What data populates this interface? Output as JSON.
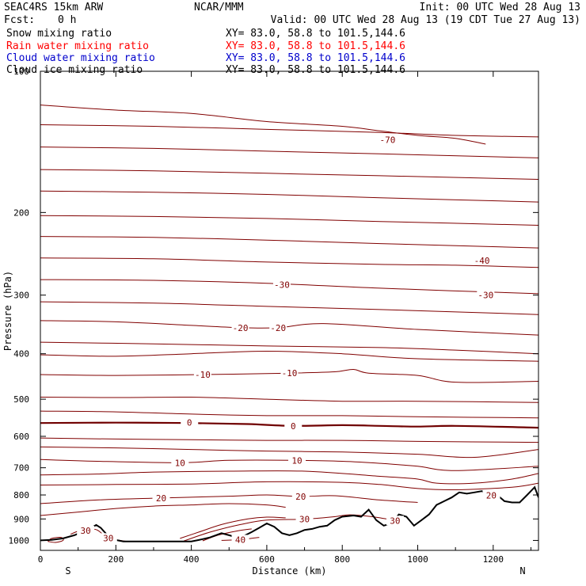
{
  "header": {
    "model": "SEAC4RS 15km ARW",
    "center": "NCAR/MMM",
    "init": "Init: 00 UTC Wed 28 Aug 13",
    "fcst_label": "Fcst:",
    "fcst_value": "0 h",
    "valid": "Valid: 00 UTC Wed 28 Aug 13 (19 CDT Tue 27 Aug 13)"
  },
  "fields": [
    {
      "name": "Snow mixing ratio",
      "xy": "XY=  83.0, 58.8 to 101.5,144.6",
      "color": "#000000"
    },
    {
      "name": "Rain water mixing ratio",
      "xy": "XY=  83.0, 58.8 to 101.5,144.6",
      "color": "#ff0000"
    },
    {
      "name": "Cloud water mixing ratio",
      "xy": "XY=  83.0, 58.8 to 101.5,144.6",
      "color": "#0000cc"
    },
    {
      "name": "Cloud ice mixing ratio",
      "xy": "XY=  83.0, 58.8 to 101.5,144.6",
      "color": "#000000"
    }
  ],
  "chart_data": {
    "type": "line",
    "xlabel": "Distance (km)",
    "ylabel": "Pressure (hPa)",
    "xlim": [
      0,
      1320
    ],
    "ylim": [
      1050,
      100
    ],
    "y_scale": "log",
    "x_ticks": [
      "0",
      "200",
      "400",
      "600",
      "800",
      "1000",
      "1200"
    ],
    "y_ticks": [
      "100",
      "200",
      "300",
      "400",
      "500",
      "600",
      "700",
      "800",
      "900",
      "1000"
    ],
    "endpoint_labels": {
      "left": "S",
      "right": "N"
    },
    "contour_color": "#800000",
    "zero_line_color": "#700000",
    "terrain_color": "#000000",
    "contour_labels": [
      {
        "text": "-70",
        "x": 920,
        "y": 140
      },
      {
        "text": "-40",
        "x": 1170,
        "y": 253
      },
      {
        "text": "-30",
        "x": 640,
        "y": 285
      },
      {
        "text": "-30",
        "x": 1180,
        "y": 300
      },
      {
        "text": "-20",
        "x": 530,
        "y": 352
      },
      {
        "text": "-20",
        "x": 630,
        "y": 352
      },
      {
        "text": "-10",
        "x": 430,
        "y": 443
      },
      {
        "text": "-10",
        "x": 660,
        "y": 440
      },
      {
        "text": "0",
        "x": 395,
        "y": 560
      },
      {
        "text": "0",
        "x": 670,
        "y": 570
      },
      {
        "text": "10",
        "x": 370,
        "y": 683
      },
      {
        "text": "10",
        "x": 680,
        "y": 675
      },
      {
        "text": "20",
        "x": 320,
        "y": 812
      },
      {
        "text": "20",
        "x": 690,
        "y": 806
      },
      {
        "text": "20",
        "x": 1195,
        "y": 802
      },
      {
        "text": "30",
        "x": 700,
        "y": 901
      },
      {
        "text": "30",
        "x": 940,
        "y": 907
      },
      {
        "text": "30",
        "x": 120,
        "y": 953
      },
      {
        "text": "30",
        "x": 180,
        "y": 988
      },
      {
        "text": "40",
        "x": 530,
        "y": 996
      }
    ],
    "contours": [
      {
        "value": -70,
        "points": [
          [
            0,
            118
          ],
          [
            200,
            121
          ],
          [
            400,
            123
          ],
          [
            600,
            128
          ],
          [
            800,
            131
          ],
          [
            900,
            134
          ],
          [
            1000,
            137
          ],
          [
            1100,
            139
          ],
          [
            1180,
            143
          ]
        ]
      },
      {
        "value": -70,
        "points": [
          [
            0,
            130
          ],
          [
            300,
            131
          ],
          [
            600,
            133
          ],
          [
            900,
            135
          ],
          [
            1100,
            137
          ],
          [
            1320,
            138
          ]
        ]
      },
      {
        "value": -70,
        "points": [
          [
            0,
            145
          ],
          [
            300,
            146
          ],
          [
            600,
            148
          ],
          [
            900,
            150
          ],
          [
            1320,
            153
          ]
        ]
      },
      {
        "value": -60,
        "points": [
          [
            0,
            162
          ],
          [
            300,
            163
          ],
          [
            600,
            165
          ],
          [
            900,
            167
          ],
          [
            1320,
            170
          ]
        ]
      },
      {
        "value": -60,
        "points": [
          [
            0,
            180
          ],
          [
            300,
            181
          ],
          [
            600,
            183
          ],
          [
            900,
            186
          ],
          [
            1320,
            190
          ]
        ]
      },
      {
        "value": -50,
        "points": [
          [
            0,
            203
          ],
          [
            300,
            204
          ],
          [
            600,
            206
          ],
          [
            900,
            209
          ],
          [
            1320,
            213
          ]
        ]
      },
      {
        "value": -50,
        "points": [
          [
            0,
            225
          ],
          [
            300,
            226
          ],
          [
            600,
            229
          ],
          [
            900,
            233
          ],
          [
            1320,
            238
          ]
        ]
      },
      {
        "value": -40,
        "points": [
          [
            0,
            250
          ],
          [
            300,
            251
          ],
          [
            600,
            255
          ],
          [
            900,
            258
          ],
          [
            1100,
            259
          ],
          [
            1320,
            262
          ]
        ]
      },
      {
        "value": -30,
        "points": [
          [
            0,
            278
          ],
          [
            300,
            279
          ],
          [
            600,
            283
          ],
          [
            900,
            290
          ],
          [
            1320,
            298
          ]
        ]
      },
      {
        "value": -30,
        "points": [
          [
            0,
            310
          ],
          [
            300,
            312
          ],
          [
            600,
            317
          ],
          [
            900,
            322
          ],
          [
            1320,
            330
          ]
        ]
      },
      {
        "value": -20,
        "points": [
          [
            0,
            340
          ],
          [
            200,
            342
          ],
          [
            400,
            348
          ],
          [
            530,
            352
          ],
          [
            630,
            352
          ],
          [
            750,
            345
          ],
          [
            1000,
            355
          ],
          [
            1320,
            365
          ]
        ]
      },
      {
        "value": -20,
        "points": [
          [
            0,
            378
          ],
          [
            300,
            381
          ],
          [
            600,
            385
          ],
          [
            900,
            388
          ],
          [
            1100,
            393
          ],
          [
            1320,
            400
          ]
        ]
      },
      {
        "value": -10,
        "points": [
          [
            0,
            402
          ],
          [
            200,
            405
          ],
          [
            400,
            400
          ],
          [
            600,
            395
          ],
          [
            800,
            400
          ],
          [
            1000,
            410
          ],
          [
            1320,
            415
          ]
        ]
      },
      {
        "value": -10,
        "points": [
          [
            0,
            443
          ],
          [
            200,
            445
          ],
          [
            430,
            443
          ],
          [
            660,
            440
          ],
          [
            780,
            437
          ],
          [
            830,
            432
          ],
          [
            870,
            440
          ],
          [
            1000,
            445
          ],
          [
            1100,
            460
          ],
          [
            1320,
            458
          ]
        ]
      },
      {
        "value": -5,
        "points": [
          [
            0,
            495
          ],
          [
            200,
            496
          ],
          [
            400,
            495
          ],
          [
            600,
            500
          ],
          [
            800,
            505
          ],
          [
            1000,
            505
          ],
          [
            1320,
            508
          ]
        ]
      },
      {
        "value": -5,
        "points": [
          [
            0,
            530
          ],
          [
            200,
            532
          ],
          [
            400,
            538
          ],
          [
            600,
            542
          ],
          [
            800,
            542
          ],
          [
            1000,
            545
          ],
          [
            1320,
            548
          ]
        ]
      },
      {
        "value": 0,
        "zero": true,
        "points": [
          [
            0,
            562
          ],
          [
            200,
            561
          ],
          [
            395,
            562
          ],
          [
            550,
            565
          ],
          [
            670,
            570
          ],
          [
            800,
            568
          ],
          [
            900,
            570
          ],
          [
            1000,
            572
          ],
          [
            1100,
            570
          ],
          [
            1320,
            575
          ]
        ]
      },
      {
        "value": 5,
        "points": [
          [
            0,
            605
          ],
          [
            200,
            608
          ],
          [
            400,
            610
          ],
          [
            600,
            612
          ],
          [
            800,
            612
          ],
          [
            1000,
            615
          ],
          [
            1320,
            618
          ]
        ]
      },
      {
        "value": 5,
        "points": [
          [
            0,
            632
          ],
          [
            200,
            635
          ],
          [
            400,
            640
          ],
          [
            600,
            645
          ],
          [
            800,
            648
          ],
          [
            1000,
            655
          ],
          [
            1150,
            665
          ],
          [
            1320,
            640
          ]
        ]
      },
      {
        "value": 10,
        "points": [
          [
            0,
            672
          ],
          [
            150,
            678
          ],
          [
            370,
            683
          ],
          [
            500,
            675
          ],
          [
            680,
            675
          ],
          [
            800,
            678
          ],
          [
            900,
            685
          ],
          [
            1000,
            695
          ],
          [
            1100,
            710
          ],
          [
            1320,
            695
          ]
        ]
      },
      {
        "value": 15,
        "points": [
          [
            0,
            725
          ],
          [
            150,
            722
          ],
          [
            300,
            715
          ],
          [
            500,
            712
          ],
          [
            700,
            712
          ],
          [
            900,
            730
          ],
          [
            1000,
            740
          ],
          [
            1050,
            755
          ],
          [
            1150,
            755
          ],
          [
            1250,
            740
          ],
          [
            1320,
            720
          ]
        ]
      },
      {
        "value": 15,
        "points": [
          [
            0,
            762
          ],
          [
            200,
            760
          ],
          [
            400,
            758
          ],
          [
            600,
            750
          ],
          [
            800,
            752
          ],
          [
            900,
            760
          ],
          [
            1000,
            775
          ],
          [
            1100,
            780
          ],
          [
            1250,
            770
          ],
          [
            1320,
            755
          ]
        ]
      },
      {
        "value": 20,
        "points": [
          [
            0,
            835
          ],
          [
            150,
            820
          ],
          [
            320,
            812
          ],
          [
            500,
            805
          ],
          [
            600,
            800
          ],
          [
            690,
            806
          ],
          [
            780,
            803
          ],
          [
            900,
            820
          ],
          [
            1000,
            830
          ]
        ]
      },
      {
        "value": 25,
        "points": [
          [
            0,
            885
          ],
          [
            100,
            870
          ],
          [
            200,
            855
          ],
          [
            300,
            845
          ],
          [
            400,
            840
          ],
          [
            500,
            835
          ],
          [
            600,
            840
          ],
          [
            650,
            850
          ]
        ]
      },
      {
        "value": 25,
        "points": [
          [
            370,
            990
          ],
          [
            420,
            960
          ],
          [
            480,
            925
          ],
          [
            550,
            900
          ],
          [
            600,
            892
          ],
          [
            650,
            895
          ]
        ]
      },
      {
        "value": 30,
        "points": [
          [
            380,
            1003
          ],
          [
            450,
            960
          ],
          [
            530,
            925
          ],
          [
            600,
            905
          ],
          [
            700,
            901
          ],
          [
            780,
            890
          ],
          [
            820,
            882
          ],
          [
            880,
            890
          ],
          [
            940,
            907
          ]
        ]
      },
      {
        "value": 35,
        "points": [
          [
            430,
            1002
          ],
          [
            470,
            975
          ],
          [
            520,
            955
          ],
          [
            560,
            945
          ]
        ]
      },
      {
        "value": 40,
        "points": [
          [
            480,
            1000
          ],
          [
            530,
            996
          ],
          [
            580,
            985
          ]
        ]
      },
      {
        "value": 30,
        "points": [
          [
            80,
            970
          ],
          [
            100,
            955
          ],
          [
            120,
            945
          ],
          [
            150,
            950
          ],
          [
            180,
            988
          ],
          [
            230,
            1005
          ]
        ]
      },
      {
        "value": 35,
        "points": [
          [
            20,
            1005
          ],
          [
            30,
            990
          ],
          [
            55,
            985
          ],
          [
            60,
            1000
          ],
          [
            40,
            1010
          ],
          [
            20,
            1005
          ]
        ]
      }
    ],
    "terrain": [
      [
        0,
        1000
      ],
      [
        30,
        997
      ],
      [
        60,
        990
      ],
      [
        90,
        975
      ],
      [
        110,
        960
      ],
      [
        130,
        945
      ],
      [
        148,
        927
      ],
      [
        160,
        940
      ],
      [
        180,
        980
      ],
      [
        200,
        998
      ],
      [
        220,
        1005
      ],
      [
        260,
        1005
      ],
      [
        300,
        1005
      ],
      [
        340,
        1005
      ],
      [
        380,
        1005
      ],
      [
        400,
        1005
      ],
      [
        420,
        998
      ],
      [
        450,
        985
      ],
      [
        480,
        965
      ],
      [
        500,
        975
      ],
      [
        520,
        985
      ],
      [
        540,
        978
      ],
      [
        560,
        960
      ],
      [
        580,
        940
      ],
      [
        600,
        920
      ],
      [
        620,
        935
      ],
      [
        640,
        965
      ],
      [
        660,
        975
      ],
      [
        680,
        965
      ],
      [
        700,
        950
      ],
      [
        720,
        945
      ],
      [
        740,
        935
      ],
      [
        760,
        930
      ],
      [
        780,
        905
      ],
      [
        800,
        890
      ],
      [
        830,
        885
      ],
      [
        850,
        890
      ],
      [
        870,
        860
      ],
      [
        890,
        905
      ],
      [
        910,
        930
      ],
      [
        930,
        920
      ],
      [
        950,
        880
      ],
      [
        970,
        890
      ],
      [
        990,
        930
      ],
      [
        1010,
        905
      ],
      [
        1030,
        880
      ],
      [
        1050,
        840
      ],
      [
        1070,
        825
      ],
      [
        1090,
        810
      ],
      [
        1110,
        790
      ],
      [
        1130,
        795
      ],
      [
        1150,
        790
      ],
      [
        1170,
        785
      ],
      [
        1190,
        800
      ],
      [
        1210,
        800
      ],
      [
        1230,
        825
      ],
      [
        1250,
        830
      ],
      [
        1270,
        830
      ],
      [
        1290,
        800
      ],
      [
        1310,
        770
      ],
      [
        1320,
        810
      ]
    ]
  }
}
